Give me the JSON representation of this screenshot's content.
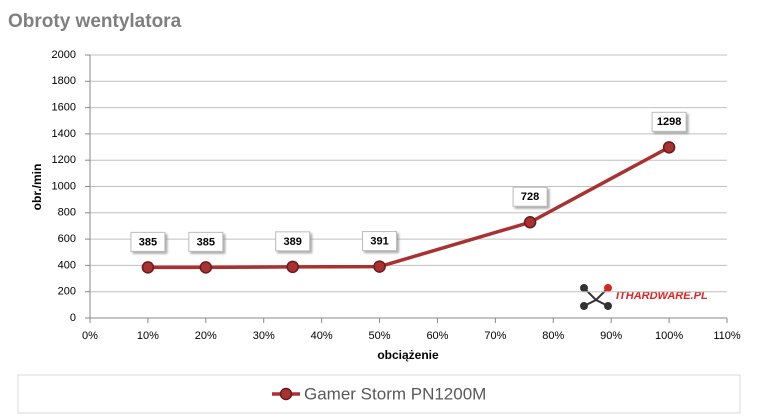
{
  "chart_data": {
    "type": "line",
    "title": "Obroty wentylatora",
    "xlabel": "obciążenie",
    "ylabel": "obr./min",
    "x": [
      10,
      20,
      35,
      50,
      76,
      100
    ],
    "series": [
      {
        "name": "Gamer Storm PN1200M",
        "color": "#a83232",
        "values": [
          385,
          385,
          389,
          391,
          728,
          1298
        ]
      }
    ],
    "xlim": [
      0,
      110
    ],
    "xticks": [
      {
        "value": 0,
        "label": "0%"
      },
      {
        "value": 10,
        "label": "10%"
      },
      {
        "value": 20,
        "label": "20%"
      },
      {
        "value": 30,
        "label": "30%"
      },
      {
        "value": 40,
        "label": "40%"
      },
      {
        "value": 50,
        "label": "50%"
      },
      {
        "value": 60,
        "label": "60%"
      },
      {
        "value": 70,
        "label": "70%"
      },
      {
        "value": 80,
        "label": "80%"
      },
      {
        "value": 90,
        "label": "90%"
      },
      {
        "value": 100,
        "label": "100%"
      },
      {
        "value": 110,
        "label": "110%"
      }
    ],
    "ylim": [
      0,
      2000
    ],
    "yticks": [
      0,
      200,
      400,
      600,
      800,
      1000,
      1200,
      1400,
      1600,
      1800,
      2000
    ],
    "grid": true,
    "legend": "bottom",
    "watermark": "ITHARDWARE.PL"
  }
}
